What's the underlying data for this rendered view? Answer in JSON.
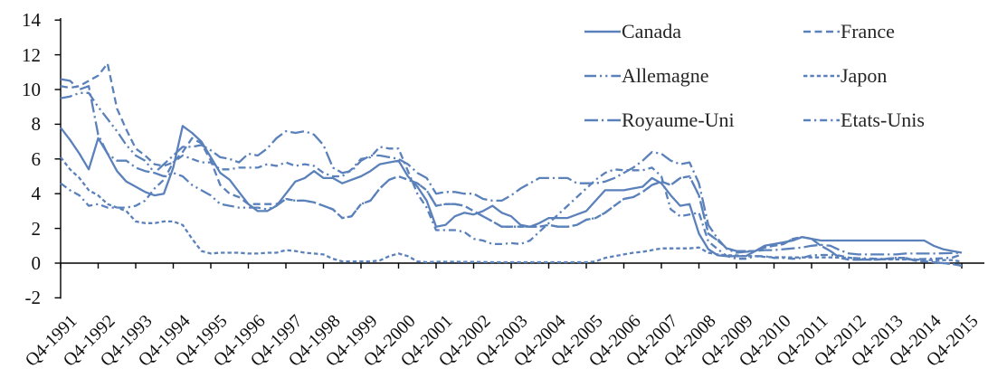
{
  "chart_data": {
    "type": "line",
    "title": "",
    "grid": "off",
    "legend_position": "top-right",
    "legend_columns": 2,
    "line_color": "#5B81BB",
    "axis_color": "#000000",
    "text_color": "#111111",
    "ylim": [
      -2,
      14
    ],
    "y_ticks": [
      14,
      12,
      10,
      8,
      6,
      4,
      2,
      0,
      -2
    ],
    "x_tick_labels": [
      "Q4-1991",
      "Q4-1992",
      "Q4-1993",
      "Q4-1994",
      "Q4-1995",
      "Q4-1996",
      "Q4-1997",
      "Q4-1998",
      "Q4-1999",
      "Q4-2000",
      "Q4-2001",
      "Q4-2002",
      "Q4-2003",
      "Q4-2004",
      "Q4-2005",
      "Q4-2006",
      "Q4-2007",
      "Q4-2008",
      "Q4-2009",
      "Q4-2010",
      "Q4-2011",
      "Q4-2012",
      "Q4-2013",
      "Q4-2014",
      "Q4-2015"
    ],
    "x_start": "Q4-1991",
    "x_end": "Q4-2015",
    "points_per_year": 4,
    "series": [
      {
        "name": "Canada",
        "line_style": "solid",
        "values": [
          7.8,
          7.1,
          6.3,
          5.4,
          7.2,
          6.3,
          5.3,
          4.7,
          4.4,
          4.1,
          3.9,
          4.0,
          5.5,
          7.9,
          7.5,
          7.0,
          6.1,
          5.2,
          4.8,
          4.1,
          3.4,
          3.0,
          3.0,
          3.3,
          4.0,
          4.7,
          4.9,
          5.3,
          4.9,
          4.9,
          4.6,
          4.8,
          5.0,
          5.3,
          5.7,
          5.8,
          5.9,
          5.0,
          4.4,
          3.6,
          2.1,
          2.2,
          2.7,
          2.9,
          2.8,
          3.0,
          3.3,
          2.9,
          2.7,
          2.2,
          2.1,
          2.3,
          2.6,
          2.6,
          2.6,
          2.8,
          3.0,
          3.6,
          4.2,
          4.2,
          4.2,
          4.3,
          4.4,
          4.9,
          4.6,
          3.9,
          3.3,
          3.4,
          1.7,
          0.8,
          0.45,
          0.4,
          0.4,
          0.4,
          0.7,
          1.0,
          1.1,
          1.2,
          1.3,
          1.5,
          1.4,
          1.3,
          1.3,
          1.3,
          1.3,
          1.3,
          1.3,
          1.3,
          1.3,
          1.3,
          1.3,
          1.3,
          1.3,
          1.0,
          0.8,
          0.7,
          0.6
        ]
      },
      {
        "name": "France",
        "line_style": "dashed",
        "values": [
          10.2,
          10.1,
          10.2,
          10.5,
          10.8,
          11.5,
          8.9,
          7.7,
          6.6,
          6.2,
          5.7,
          5.6,
          5.8,
          6.4,
          7.2,
          6.9,
          5.9,
          4.5,
          4.0,
          3.8,
          3.4,
          3.4,
          3.4,
          3.4,
          3.7,
          3.6,
          3.6,
          3.5,
          3.3,
          3.1,
          2.6,
          2.7,
          3.4,
          3.6,
          4.3,
          4.8,
          5.0,
          4.8,
          4.6,
          4.2,
          3.3,
          3.4,
          3.4,
          3.3,
          3.0,
          2.7,
          2.4,
          2.1,
          2.1,
          2.1,
          2.1,
          2.1,
          2.2,
          2.1,
          2.1,
          2.2,
          2.5,
          2.6,
          2.9,
          3.3,
          3.7,
          3.8,
          4.1,
          4.5,
          4.7,
          4.5,
          4.9,
          5.0,
          3.9,
          1.7,
          1.3,
          0.85,
          0.7,
          0.7,
          0.7,
          0.9,
          1.0,
          1.1,
          1.4,
          1.5,
          1.4,
          1.0,
          0.7,
          0.3,
          0.2,
          0.2,
          0.2,
          0.2,
          0.25,
          0.3,
          0.3,
          0.15,
          0.1,
          0.05,
          0.0,
          -0.05,
          -0.15
        ]
      },
      {
        "name": "Allemagne",
        "line_style": "long-dash-dot-dot",
        "values": [
          9.5,
          9.6,
          9.8,
          9.8,
          9.0,
          8.3,
          7.6,
          6.8,
          6.2,
          5.9,
          5.2,
          5.0,
          5.2,
          5.0,
          4.5,
          4.2,
          3.9,
          3.4,
          3.3,
          3.2,
          3.2,
          3.2,
          3.1,
          3.3,
          3.7,
          3.6,
          3.6,
          3.5,
          3.3,
          3.1,
          2.6,
          2.7,
          3.4,
          3.6,
          4.3,
          4.8,
          5.0,
          4.8,
          4.6,
          4.2,
          3.3,
          3.4,
          3.4,
          3.3,
          3.0,
          2.7,
          2.4,
          2.1,
          2.1,
          2.1,
          2.1,
          2.1,
          2.2,
          2.1,
          2.1,
          2.2,
          2.5,
          2.6,
          2.9,
          3.3,
          3.7,
          3.8,
          4.1,
          4.5,
          4.7,
          4.5,
          4.9,
          5.0,
          3.9,
          1.7,
          1.3,
          0.85,
          0.7,
          0.7,
          0.7,
          0.9,
          1.0,
          1.1,
          1.4,
          1.5,
          1.4,
          1.0,
          0.7,
          0.3,
          0.2,
          0.2,
          0.2,
          0.2,
          0.25,
          0.3,
          0.3,
          0.15,
          0.1,
          0.05,
          0.0,
          -0.05,
          -0.15
        ]
      },
      {
        "name": "Japon",
        "line_style": "short-dash",
        "values": [
          6.1,
          5.4,
          4.9,
          4.2,
          3.9,
          3.4,
          3.2,
          3.0,
          2.4,
          2.3,
          2.3,
          2.4,
          2.4,
          2.2,
          1.4,
          0.7,
          0.55,
          0.6,
          0.6,
          0.6,
          0.55,
          0.55,
          0.6,
          0.6,
          0.75,
          0.7,
          0.6,
          0.55,
          0.5,
          0.25,
          0.1,
          0.1,
          0.1,
          0.1,
          0.15,
          0.4,
          0.55,
          0.4,
          0.1,
          0.05,
          0.08,
          0.08,
          0.08,
          0.07,
          0.07,
          0.06,
          0.05,
          0.05,
          0.05,
          0.05,
          0.05,
          0.05,
          0.05,
          0.05,
          0.05,
          0.05,
          0.05,
          0.1,
          0.3,
          0.4,
          0.5,
          0.6,
          0.65,
          0.75,
          0.85,
          0.85,
          0.85,
          0.85,
          0.9,
          0.6,
          0.5,
          0.45,
          0.45,
          0.4,
          0.4,
          0.36,
          0.34,
          0.34,
          0.33,
          0.33,
          0.33,
          0.33,
          0.33,
          0.32,
          0.31,
          0.25,
          0.23,
          0.22,
          0.22,
          0.21,
          0.21,
          0.21,
          0.18,
          0.17,
          0.17,
          0.17,
          0.08
        ]
      },
      {
        "name": "Royaume-Uni",
        "line_style": "long-dash-dot",
        "values": [
          10.6,
          10.5,
          10.0,
          10.2,
          7.4,
          6.3,
          5.9,
          5.9,
          5.5,
          5.3,
          5.2,
          5.7,
          6.2,
          6.7,
          6.7,
          6.8,
          6.5,
          6.1,
          6.0,
          5.8,
          6.3,
          6.2,
          6.6,
          7.2,
          7.6,
          7.5,
          7.6,
          7.4,
          6.8,
          5.5,
          5.2,
          5.3,
          5.9,
          6.2,
          6.2,
          6.1,
          6.0,
          5.7,
          5.2,
          4.9,
          4.0,
          4.1,
          4.1,
          4.0,
          4.0,
          3.7,
          3.6,
          3.6,
          3.9,
          4.3,
          4.6,
          4.9,
          4.9,
          4.9,
          4.9,
          4.6,
          4.6,
          4.6,
          4.7,
          4.9,
          5.2,
          5.5,
          5.9,
          6.4,
          6.3,
          5.9,
          5.7,
          5.8,
          4.6,
          2.2,
          1.4,
          0.8,
          0.6,
          0.65,
          0.7,
          0.75,
          0.75,
          0.8,
          0.85,
          0.9,
          1.0,
          1.05,
          1.0,
          0.75,
          0.55,
          0.5,
          0.5,
          0.5,
          0.5,
          0.5,
          0.55,
          0.55,
          0.55,
          0.55,
          0.57,
          0.58,
          0.6
        ]
      },
      {
        "name": "Etats-Unis",
        "line_style": "dash-dot",
        "values": [
          4.6,
          4.2,
          3.9,
          3.3,
          3.4,
          3.2,
          3.2,
          3.2,
          3.3,
          3.6,
          4.3,
          4.8,
          5.8,
          6.2,
          6.0,
          5.8,
          5.8,
          5.4,
          5.4,
          5.5,
          5.5,
          5.5,
          5.7,
          5.6,
          5.8,
          5.6,
          5.7,
          5.6,
          5.2,
          5.0,
          5.0,
          5.4,
          6.0,
          6.1,
          6.7,
          6.6,
          6.6,
          5.3,
          4.0,
          3.2,
          1.9,
          1.9,
          1.9,
          1.8,
          1.4,
          1.3,
          1.1,
          1.1,
          1.15,
          1.1,
          1.3,
          1.8,
          2.3,
          2.8,
          3.3,
          3.8,
          4.3,
          4.8,
          5.2,
          5.4,
          5.35,
          5.35,
          5.35,
          5.5,
          5.0,
          3.1,
          2.7,
          2.8,
          2.9,
          1.25,
          0.8,
          0.4,
          0.25,
          0.25,
          0.4,
          0.4,
          0.3,
          0.3,
          0.25,
          0.3,
          0.45,
          0.47,
          0.47,
          0.43,
          0.31,
          0.28,
          0.27,
          0.25,
          0.24,
          0.23,
          0.23,
          0.23,
          0.24,
          0.26,
          0.28,
          0.32,
          0.5
        ]
      }
    ]
  }
}
